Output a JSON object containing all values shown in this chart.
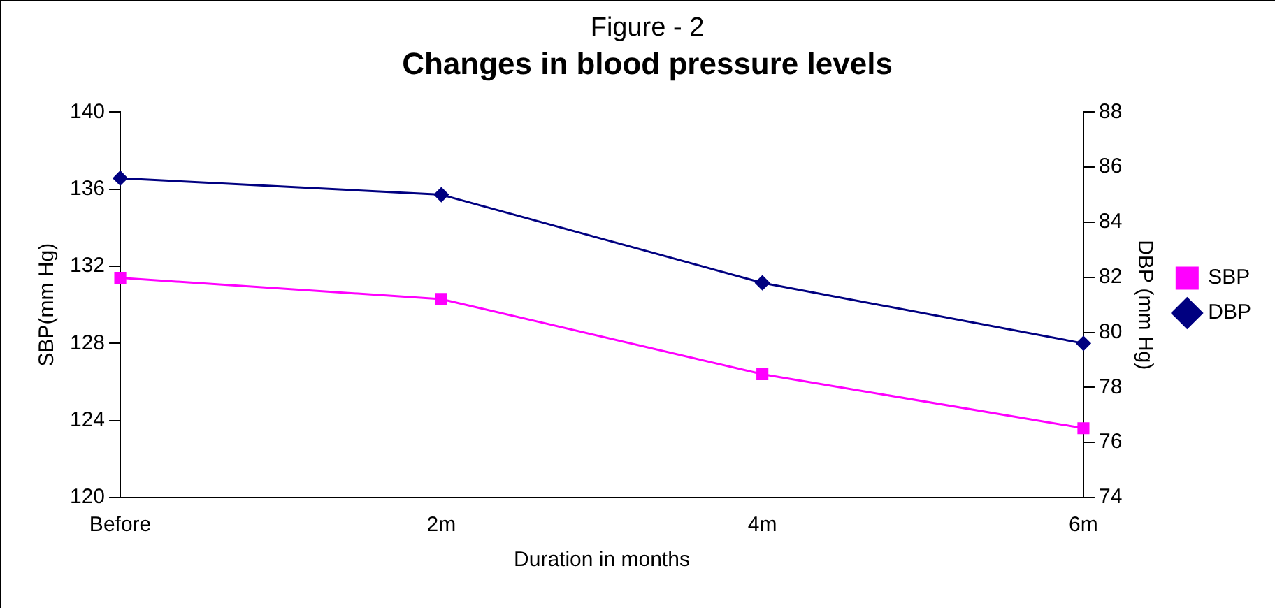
{
  "chart_data": {
    "type": "line",
    "title": "Figure - 2",
    "subtitle": "Changes in blood pressure levels",
    "xlabel": "Duration in months",
    "ylabel": "SBP(mm Hg)",
    "y2label": "DBP (mm Hg)",
    "categories": [
      "Before",
      "2m",
      "4m",
      "6m"
    ],
    "series": [
      {
        "name": "SBP",
        "color": "#ff00ff",
        "marker": "square",
        "values": [
          131.4,
          130.3,
          126.4,
          123.6
        ]
      },
      {
        "name": "DBP",
        "color": "#000080",
        "marker": "diamond",
        "axis": "y2",
        "values": [
          85.6,
          85.0,
          81.8,
          79.6
        ]
      }
    ],
    "ylim": [
      120,
      140
    ],
    "yticks": [
      120,
      124,
      128,
      132,
      136,
      140
    ],
    "y2lim": [
      74,
      88
    ],
    "y2ticks": [
      74,
      76,
      78,
      80,
      82,
      84,
      86,
      88
    ],
    "grid": false,
    "legend": "right",
    "line_style": "solid"
  }
}
